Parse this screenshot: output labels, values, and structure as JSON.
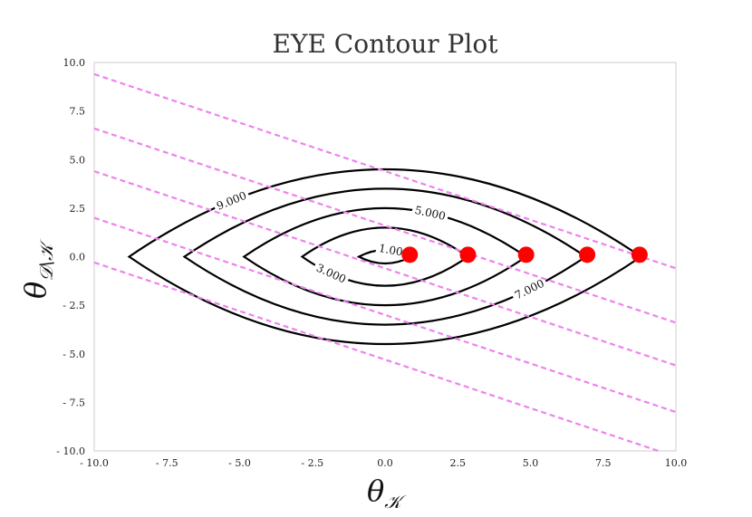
{
  "chart_data": {
    "type": "contour",
    "title": "EYE Contour Plot",
    "xlabel": "θ",
    "xlabel_sub": "𝒦",
    "ylabel": "θ",
    "ylabel_sub": "𝒟\\𝒦",
    "xlim": [
      -10,
      10
    ],
    "ylim": [
      -10,
      10
    ],
    "xticks": [
      -10,
      -7.5,
      -5,
      -2.5,
      0,
      2.5,
      5,
      7.5,
      10
    ],
    "yticks": [
      -10,
      -7.5,
      -5,
      -2.5,
      0,
      2.5,
      5,
      7.5,
      10
    ],
    "xtick_labels": [
      "- 10.0",
      "- 7.5",
      "- 5.0",
      "- 2.5",
      "0.0",
      "2.5",
      "5.0",
      "7.5",
      "10.0"
    ],
    "ytick_labels": [
      "- 10.0",
      "- 7.5",
      "- 5.0",
      "- 2.5",
      "0.0",
      "2.5",
      "5.0",
      "7.5",
      "10.0"
    ],
    "contour_color": "#000000",
    "contours": [
      {
        "level": 1.0,
        "label": "1.000",
        "labeled": true,
        "half_width": 0.9,
        "half_height": 0.35
      },
      {
        "level": 3.0,
        "label": "3.000",
        "labeled": true,
        "half_width": 2.85,
        "half_height": 1.5
      },
      {
        "level": 5.0,
        "label": "5.000",
        "labeled": true,
        "half_width": 4.85,
        "half_height": 2.5
      },
      {
        "level": 7.0,
        "label": "7.000",
        "labeled": true,
        "half_width": 6.9,
        "half_height": 3.5
      },
      {
        "level": 9.0,
        "label": "9.000",
        "labeled": true,
        "half_width": 8.8,
        "half_height": 4.5
      }
    ],
    "points": {
      "color": "#ff0000",
      "x": [
        0.85,
        2.85,
        4.85,
        6.95,
        8.75
      ],
      "y": [
        0.1,
        0.1,
        0.1,
        0.1,
        0.1
      ]
    },
    "lines": {
      "color": "#ee82ee",
      "style": "dashed",
      "slope": -0.5,
      "intercepts": [
        4.4,
        1.6,
        -0.6,
        -3.0,
        -5.3
      ]
    },
    "grid": false
  }
}
